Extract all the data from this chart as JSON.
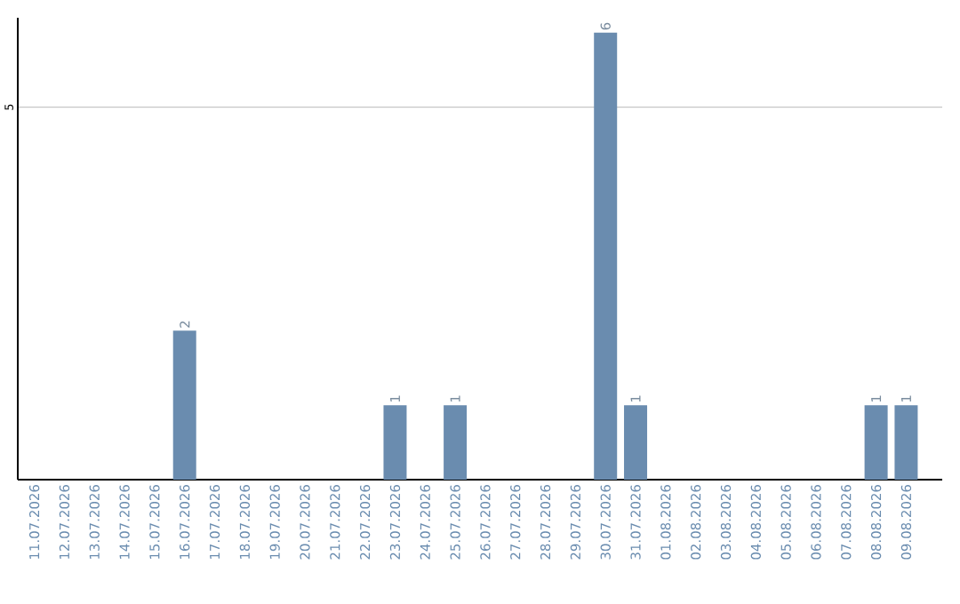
{
  "chart_data": {
    "type": "bar",
    "categories": [
      "11.07.2026",
      "12.07.2026",
      "13.07.2026",
      "14.07.2026",
      "15.07.2026",
      "16.07.2026",
      "17.07.2026",
      "18.07.2026",
      "19.07.2026",
      "20.07.2026",
      "21.07.2026",
      "22.07.2026",
      "23.07.2026",
      "24.07.2026",
      "25.07.2026",
      "26.07.2026",
      "27.07.2026",
      "28.07.2026",
      "29.07.2026",
      "30.07.2026",
      "31.07.2026",
      "01.08.2026",
      "02.08.2026",
      "03.08.2026",
      "04.08.2026",
      "05.08.2026",
      "06.08.2026",
      "07.08.2026",
      "08.08.2026",
      "09.08.2026"
    ],
    "values": [
      0,
      0,
      0,
      0,
      0,
      2,
      0,
      0,
      0,
      0,
      0,
      0,
      1,
      0,
      1,
      0,
      0,
      0,
      0,
      6,
      1,
      0,
      0,
      0,
      0,
      0,
      0,
      0,
      1,
      1
    ],
    "value_labels": [
      null,
      null,
      null,
      null,
      null,
      "2",
      null,
      null,
      null,
      null,
      null,
      null,
      "1",
      null,
      "1",
      null,
      null,
      null,
      null,
      "6",
      "1",
      null,
      null,
      null,
      null,
      null,
      null,
      null,
      "1",
      "1"
    ],
    "color": "#6a8caf",
    "ylim": [
      0,
      6.2
    ],
    "yticks": [
      5
    ],
    "grid": "y"
  }
}
